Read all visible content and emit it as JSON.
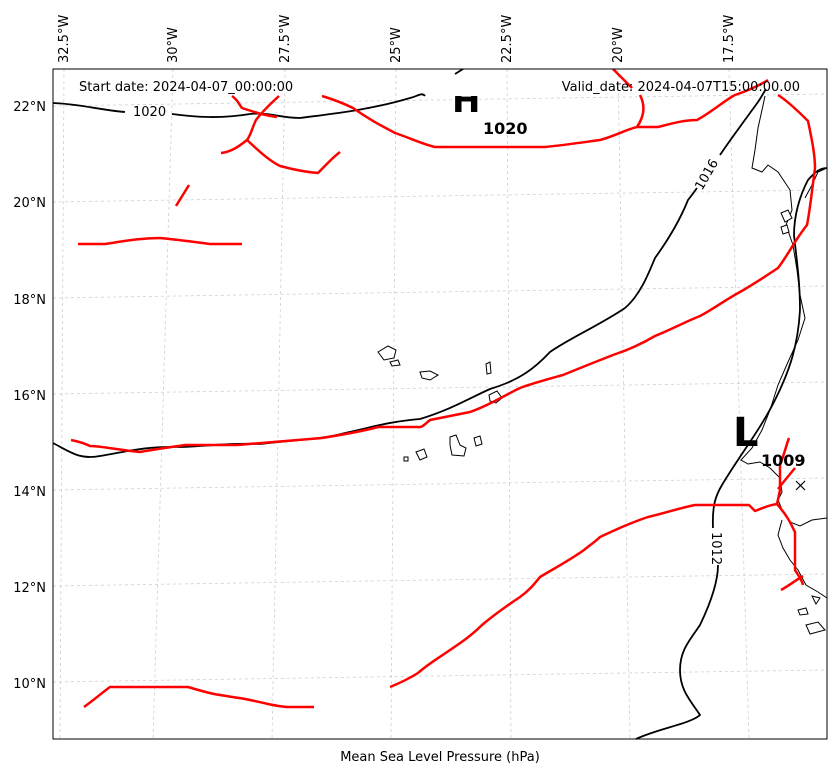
{
  "header": {
    "start_date": "Start date: 2024-04-07_00:00:00",
    "valid_date": "Valid_date: 2024-04-07T15:00:00.00"
  },
  "caption": "Mean Sea Level Pressure (hPa)",
  "longitude_labels": [
    "32.5°W",
    "30°W",
    "27.5°W",
    "25°W",
    "22.5°W",
    "20°W",
    "17.5°W"
  ],
  "latitude_labels": [
    "22°N",
    "20°N",
    "18°N",
    "16°N",
    "14°N",
    "12°N",
    "10°N"
  ],
  "isobar_labels": [
    "1020",
    "1016",
    "1012"
  ],
  "pressure_centers": [
    {
      "type": "High",
      "symbol": "H",
      "value": "1020"
    },
    {
      "type": "Low",
      "symbol": "L",
      "value": "1009"
    }
  ],
  "colors": {
    "isobar": "#000000",
    "front": "#ff0000",
    "grid": "#cfcfcf",
    "coastline": "#000000"
  },
  "markers": [
    {
      "icon": "x-mark-icon"
    }
  ]
}
